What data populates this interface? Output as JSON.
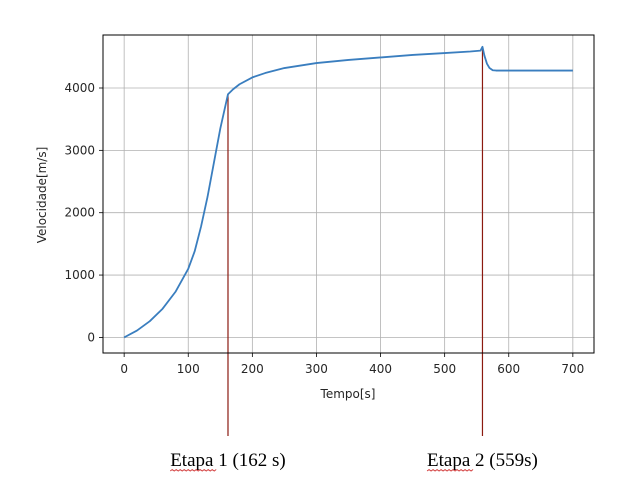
{
  "chart_data": {
    "type": "line",
    "xlabel": "Tempo[s]",
    "ylabel": "Velocidade[m/s]",
    "xlim": [
      -33,
      733
    ],
    "ylim": [
      -250,
      4850
    ],
    "xticks": [
      0,
      100,
      200,
      300,
      400,
      500,
      600,
      700
    ],
    "yticks": [
      0,
      1000,
      2000,
      3000,
      4000
    ],
    "grid": true,
    "series": [
      {
        "color": "#3a7ebf",
        "x": [
          0,
          20,
          40,
          60,
          80,
          100,
          110,
          120,
          130,
          140,
          150,
          162,
          170,
          180,
          200,
          220,
          250,
          300,
          350,
          400,
          450,
          500,
          540,
          556,
          559,
          562,
          566,
          570,
          575,
          580,
          590,
          600,
          650,
          700
        ],
        "y": [
          0,
          110,
          260,
          460,
          730,
          1100,
          1380,
          1780,
          2250,
          2800,
          3350,
          3900,
          3980,
          4060,
          4170,
          4240,
          4320,
          4400,
          4450,
          4490,
          4530,
          4560,
          4585,
          4600,
          4660,
          4520,
          4390,
          4320,
          4285,
          4280,
          4280,
          4280,
          4280,
          4280
        ]
      }
    ],
    "stage_markers": [
      {
        "x": 162,
        "label": "Etapa 1 (162 s)",
        "color": "#8b1a10"
      },
      {
        "x": 559,
        "label": "Etapa 2 (559s)",
        "color": "#8b1a10"
      }
    ]
  }
}
